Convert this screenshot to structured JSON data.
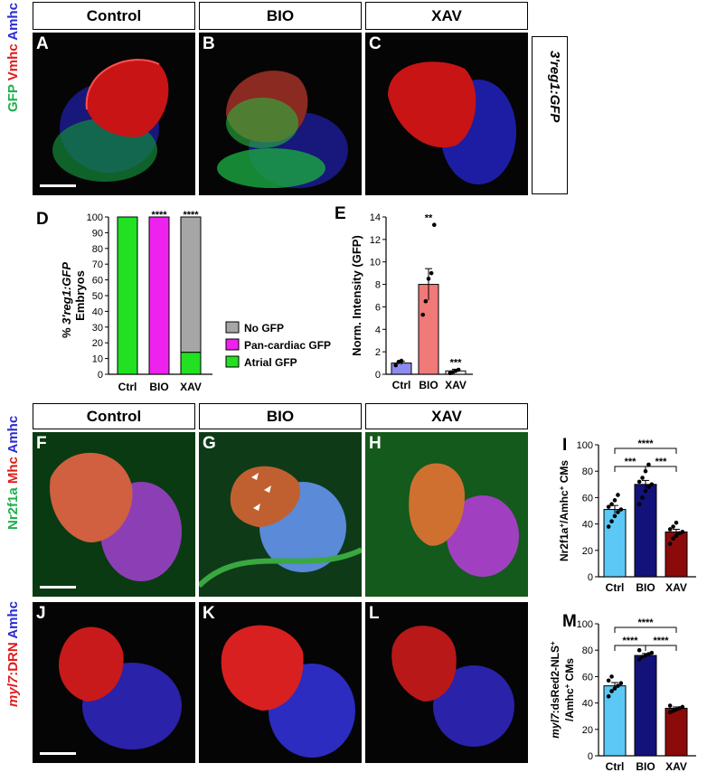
{
  "row1": {
    "headers": [
      "Control",
      "BIO",
      "XAV"
    ],
    "panel_labels": [
      "A",
      "B",
      "C"
    ],
    "stain": [
      {
        "text": "GFP",
        "color": "#1db04a"
      },
      {
        "text": "Vmhc",
        "color": "#e01b1b"
      },
      {
        "text": "Amhc",
        "color": "#2b2bd0"
      }
    ],
    "side_label": "3'reg1:GFP"
  },
  "row2": {
    "headers": [
      "Control",
      "BIO",
      "XAV"
    ],
    "panel_labels": [
      "F",
      "G",
      "H"
    ],
    "stain": [
      {
        "text": "Nr2f1a",
        "color": "#1db04a"
      },
      {
        "text": "Mhc",
        "color": "#e01b1b"
      },
      {
        "text": "Amhc",
        "color": "#2b2bd0"
      }
    ]
  },
  "row3": {
    "panel_labels": [
      "J",
      "K",
      "L"
    ],
    "stain": [
      {
        "text": "myl7",
        "color": "#e01b1b"
      },
      {
        "text": ":DRN",
        "color": "#e01b1b"
      },
      {
        "text": "Amhc",
        "color": "#2b2bd0"
      }
    ]
  },
  "colors": {
    "atrial_gfp": "#22e022",
    "pan_cardiac_gfp": "#ee22ee",
    "no_gfp": "#a6a6a6",
    "ctrl_bar": "#5bc8f5",
    "bio_bar": "#12127a",
    "xav_bar": "#8b0a0a",
    "e_ctrl": "#8c8cf0",
    "e_bio": "#f07a78",
    "e_xav": "#ffffff"
  },
  "chart_data": [
    {
      "panel": "D",
      "type": "bar",
      "stacked": true,
      "categories": [
        "Ctrl",
        "BIO",
        "XAV"
      ],
      "series": [
        {
          "name": "Atrial GFP",
          "values": [
            100,
            0,
            14
          ]
        },
        {
          "name": "Pan-cardiac GFP",
          "values": [
            0,
            100,
            0
          ]
        },
        {
          "name": "No GFP",
          "values": [
            0,
            0,
            86
          ]
        }
      ],
      "ylabel_parts": [
        "% ",
        "3'reg1:GFP",
        "Embryos"
      ],
      "ylim": [
        0,
        100
      ],
      "yticks": [
        0,
        10,
        20,
        30,
        40,
        50,
        60,
        70,
        80,
        90,
        100
      ],
      "significance": [
        "",
        "****",
        "****"
      ],
      "legend": [
        "No GFP",
        "Pan-cardiac GFP",
        "Atrial GFP"
      ]
    },
    {
      "panel": "E",
      "type": "bar",
      "categories": [
        "Ctrl",
        "BIO",
        "XAV"
      ],
      "values": [
        1.0,
        8.0,
        0.3
      ],
      "errors": [
        0.15,
        1.4,
        0.15
      ],
      "points": [
        [
          0.8,
          1.1,
          1.2
        ],
        [
          5.3,
          6.5,
          8.5,
          9.0,
          13.3
        ],
        [
          0.1,
          0.2,
          0.3,
          0.4
        ]
      ],
      "ylabel": "Norm. Intensity (GFP)",
      "ylim": [
        0,
        14
      ],
      "yticks": [
        0,
        2,
        4,
        6,
        8,
        10,
        12,
        14
      ],
      "significance": [
        "",
        "**",
        "***"
      ]
    },
    {
      "panel": "I",
      "type": "bar",
      "categories": [
        "Ctrl",
        "BIO",
        "XAV"
      ],
      "values": [
        51,
        70,
        34
      ],
      "errors": [
        3,
        3,
        2
      ],
      "points": [
        [
          38,
          42,
          46,
          49,
          51,
          53,
          55,
          58,
          62
        ],
        [
          55,
          60,
          65,
          68,
          70,
          72,
          75,
          80,
          85
        ],
        [
          25,
          29,
          31,
          33,
          34,
          36,
          38,
          41
        ]
      ],
      "ylabel_parts": [
        "Nr2f1a",
        "+",
        "/Amhc",
        "+",
        " CMs"
      ],
      "ylim": [
        0,
        100
      ],
      "yticks": [
        0,
        20,
        40,
        60,
        80,
        100
      ],
      "brackets": [
        {
          "from": 0,
          "to": 1,
          "label": "***",
          "level": 1
        },
        {
          "from": 1,
          "to": 2,
          "label": "***",
          "level": 1
        },
        {
          "from": 0,
          "to": 2,
          "label": "****",
          "level": 2
        }
      ]
    },
    {
      "panel": "M",
      "type": "bar",
      "categories": [
        "Ctrl",
        "BIO",
        "XAV"
      ],
      "values": [
        53,
        76,
        36
      ],
      "errors": [
        2.5,
        1.5,
        1
      ],
      "points": [
        [
          45,
          49,
          51,
          53,
          55,
          57,
          60
        ],
        [
          73,
          75,
          76,
          77,
          78,
          80
        ],
        [
          33,
          34,
          35,
          36,
          37,
          38
        ]
      ],
      "ylabel_parts": [
        "myl7",
        ":dsRed2-NLS",
        "+",
        "/Amhc",
        "+",
        " CMs"
      ],
      "ylim": [
        0,
        100
      ],
      "yticks": [
        0,
        20,
        40,
        60,
        80,
        100
      ],
      "brackets": [
        {
          "from": 0,
          "to": 1,
          "label": "****",
          "level": 1
        },
        {
          "from": 1,
          "to": 2,
          "label": "****",
          "level": 1
        },
        {
          "from": 0,
          "to": 2,
          "label": "****",
          "level": 2
        }
      ]
    }
  ],
  "panel_letters": {
    "D": "D",
    "E": "E",
    "I": "I",
    "M": "M"
  }
}
